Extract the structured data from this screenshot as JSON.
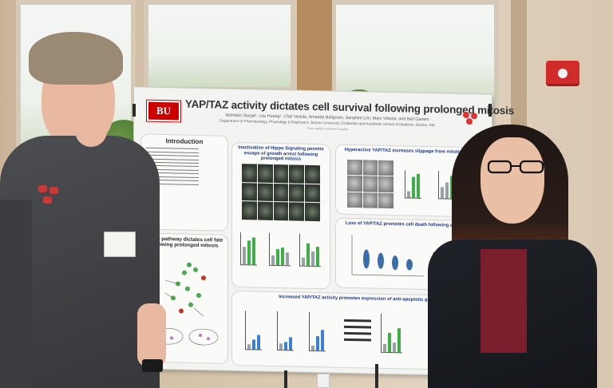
{
  "poster": {
    "logo_text": "BU",
    "title": "YAP/TAZ activity dictates cell survival following prolonged mitosis",
    "authors": "Nicholas Sturge¹, Lou Huang¹, Chaf Vedula, Amanda Bolignoni, Sanghee Lim, Marc Vittoria, and Neil Ganem",
    "department": "Department of Pharmacology, Physiology & Biophysics, Boston University Chobanian and Avedisian School of Medicine, Boston, MA",
    "note": "These authors contributed equally",
    "sections": {
      "introduction": "Introduction",
      "hippo_pathway": "Hippo pathway dictates cell fate following prolonged mitosis",
      "inactivation": "Inactivation of Hippo Signaling permits escape of growth arrest following prolonged mitosis",
      "hyperactive": "Hyperactive YAP/TAZ increases slippage from mitotic arrest",
      "loss": "Loss of YAP/TAZ promotes cell death following anti-mitotic",
      "increased": "Increased YAP/TAZ activity promotes expression of anti-apoptotic genes"
    }
  },
  "colors": {
    "bu_red": "#cc0000",
    "panel_title_blue": "#1f3a86",
    "bar_green": "#3fae49",
    "bar_blue": "#3a7fd0",
    "alarm_red": "#d22b2b"
  },
  "icons": [
    "fire-alarm-icon",
    "power-outlet-icon",
    "university-logo-icon"
  ]
}
